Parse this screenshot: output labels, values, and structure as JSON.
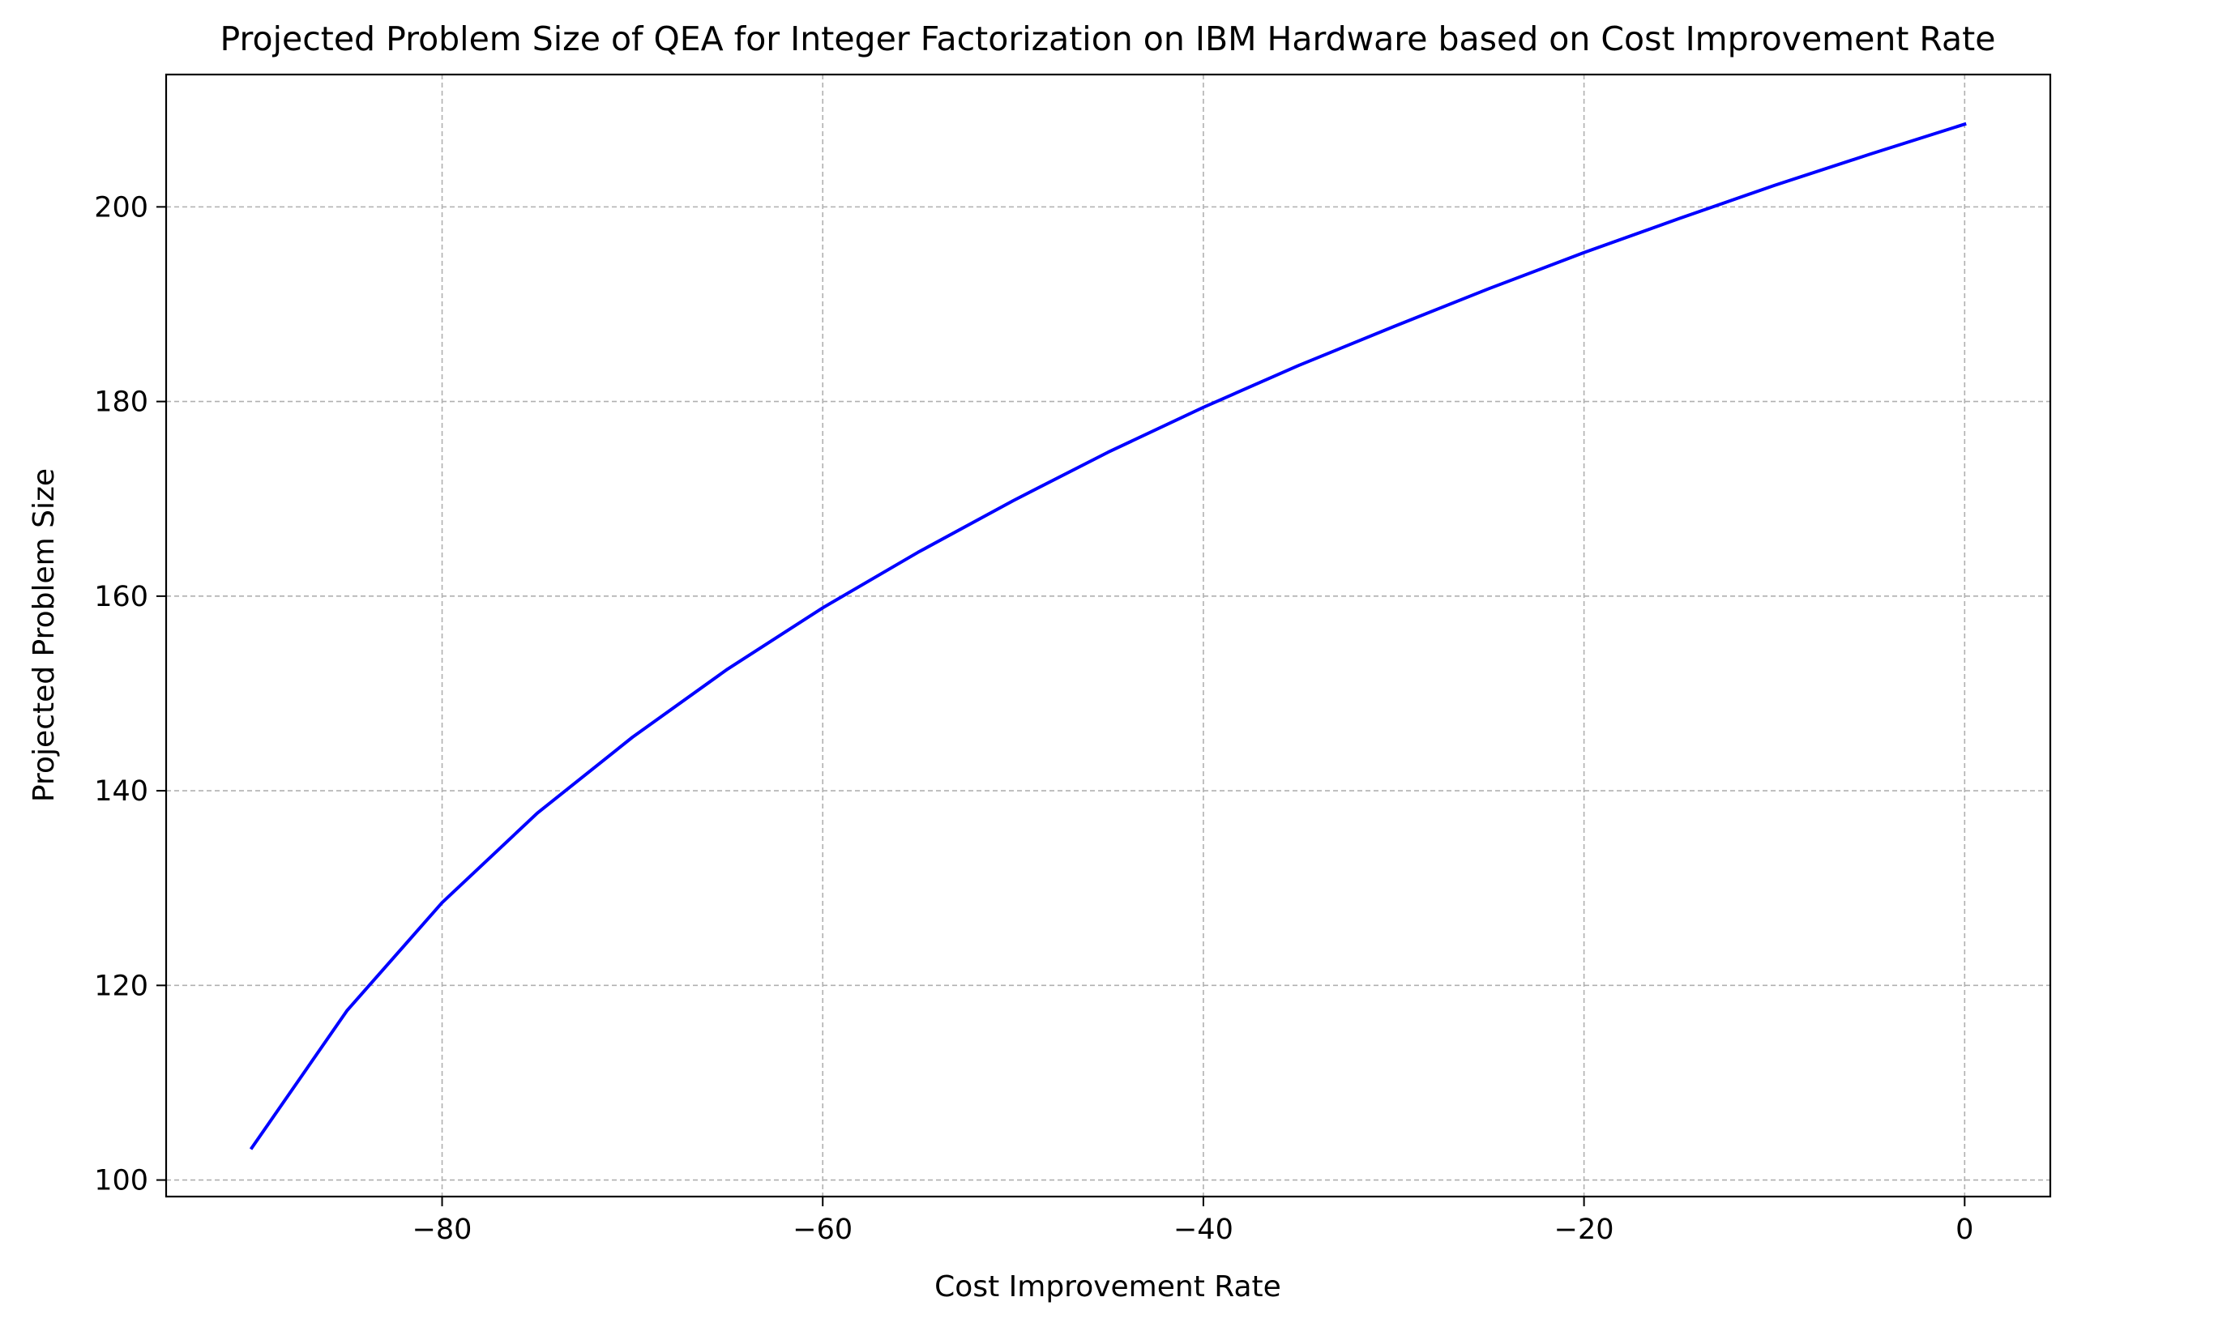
{
  "chart_data": {
    "type": "line",
    "title": "Projected Problem Size of QEA for Integer Factorization on IBM Hardware based on Cost Improvement Rate",
    "xlabel": "Cost Improvement Rate",
    "ylabel": "Projected Problem Size",
    "xlim": [
      -94.5,
      4.5
    ],
    "ylim": [
      98.3,
      213.6
    ],
    "xticks": [
      -80,
      -60,
      -40,
      -20,
      0
    ],
    "xtick_labels": [
      "−80",
      "−60",
      "−40",
      "−20",
      "0"
    ],
    "yticks": [
      100,
      120,
      140,
      160,
      180,
      200
    ],
    "ytick_labels": [
      "100",
      "120",
      "140",
      "160",
      "180",
      "200"
    ],
    "grid": true,
    "series": [
      {
        "color": "#0000ff",
        "x": [
          -90,
          -85,
          -80,
          -75,
          -70,
          -65,
          -60,
          -55,
          -50,
          -45,
          -40,
          -35,
          -30,
          -25,
          -20,
          -15,
          -10,
          -5,
          0
        ],
        "y": [
          103.3,
          117.4,
          128.5,
          137.7,
          145.5,
          152.5,
          158.8,
          164.5,
          169.8,
          174.8,
          179.4,
          183.7,
          187.7,
          191.6,
          195.3,
          198.8,
          202.2,
          205.4,
          208.5
        ]
      }
    ]
  }
}
